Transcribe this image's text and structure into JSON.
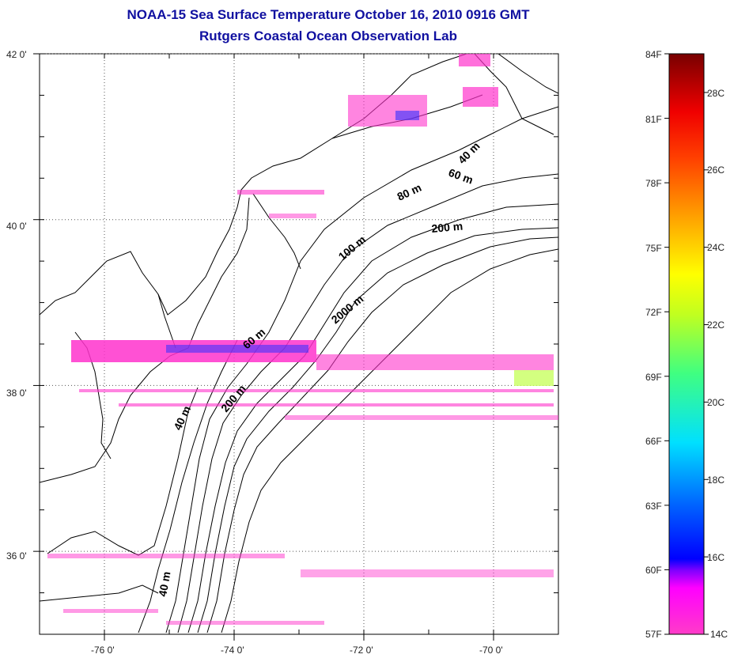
{
  "title": "NOAA-15 Sea Surface Temperature October 16, 2010 0916 GMT",
  "subtitle": "Rutgers Coastal Ocean Observation Lab",
  "map": {
    "lat_labels": [
      "42 0'",
      "40 0'",
      "38 0'",
      "36 0'"
    ],
    "lon_labels": [
      "-76 0'",
      "-74 0'",
      "-72 0'",
      "-70 0'"
    ],
    "lat_values": [
      42,
      40,
      38,
      36
    ],
    "lon_values": [
      -76,
      -74,
      -72,
      -70
    ],
    "lat_range": [
      35,
      42
    ],
    "lon_range": [
      -77,
      -69
    ],
    "grid": true
  },
  "contour_labels": [
    "40 m",
    "60 m",
    "80 m",
    "200 m",
    "100 m",
    "2000 m",
    "60 m",
    "200 m",
    "40 m",
    "40 m"
  ],
  "colorbar": {
    "fahrenheit_labels": [
      "84F",
      "81F",
      "78F",
      "75F",
      "72F",
      "69F",
      "66F",
      "63F",
      "60F",
      "57F"
    ],
    "celsius_labels": [
      "28C",
      "26C",
      "24C",
      "22C",
      "20C",
      "18C",
      "16C",
      "14C"
    ],
    "range_f": [
      57,
      84
    ],
    "range_c": [
      14,
      29
    ],
    "colors": [
      "#800000",
      "#ff0000",
      "#ff8000",
      "#ffff00",
      "#00ff80",
      "#00ffff",
      "#0080ff",
      "#0000ff",
      "#8000ff",
      "#ff00ff",
      "#ff40c0"
    ]
  }
}
